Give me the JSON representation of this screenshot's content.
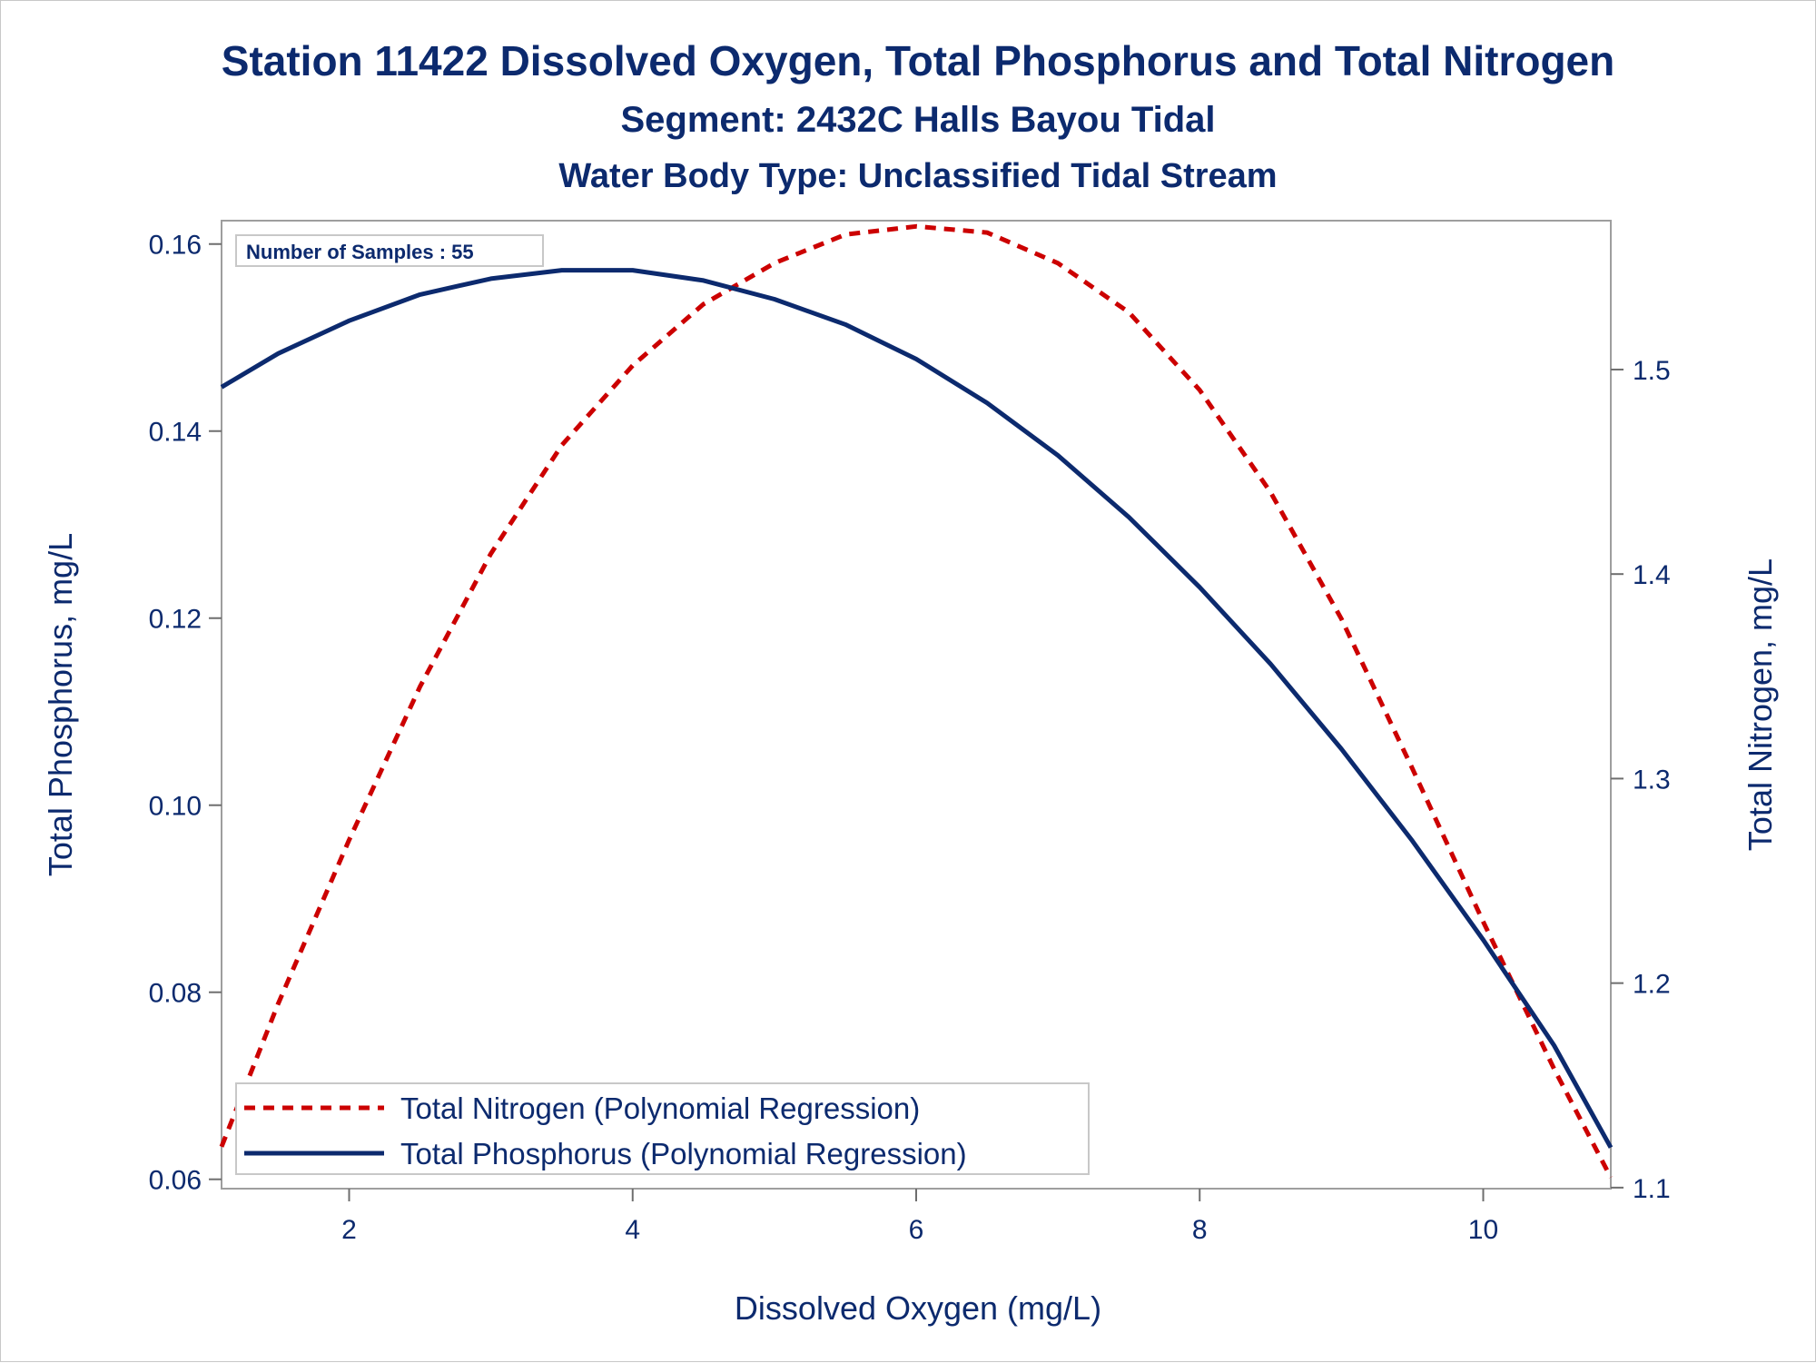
{
  "chart_data": {
    "type": "line",
    "title": "Station 11422  Dissolved Oxygen, Total Phosphorus and Total Nitrogen",
    "subtitle": "Segment: 2432C  Halls Bayou Tidal",
    "subtitle2": "Water Body Type: Unclassified Tidal Stream",
    "xlabel": "Dissolved Oxygen (mg/L)",
    "ylabel": "Total Phosphorus, mg/L",
    "y2label": "Total Nitrogen, mg/L",
    "xlim": [
      1.1,
      10.9
    ],
    "ylim": [
      0.059,
      0.1625
    ],
    "y2lim": [
      1.0995,
      1.5728
    ],
    "x_ticks": [
      "2",
      "4",
      "6",
      "8",
      "10"
    ],
    "y_ticks": [
      "0.06",
      "0.08",
      "0.10",
      "0.12",
      "0.14",
      "0.16"
    ],
    "y2_ticks": [
      "1.1",
      "1.2",
      "1.3",
      "1.4",
      "1.5"
    ],
    "annotation": "Number of Samples : 55",
    "legend_position": "bottom-left",
    "series": [
      {
        "name": "Total Nitrogen (Polynomial Regression)",
        "axis": "right",
        "color": "#cc0000",
        "style": "dashed",
        "x": [
          1.1,
          1.5,
          2.0,
          2.5,
          3.0,
          3.5,
          4.0,
          4.5,
          5.0,
          5.5,
          6.0,
          6.5,
          7.0,
          7.5,
          8.0,
          8.5,
          9.0,
          9.5,
          10.0,
          10.5,
          10.9
        ],
        "values": [
          1.12,
          1.19,
          1.27,
          1.345,
          1.41,
          1.463,
          1.502,
          1.532,
          1.552,
          1.566,
          1.57,
          1.567,
          1.552,
          1.528,
          1.49,
          1.44,
          1.378,
          1.305,
          1.23,
          1.158,
          1.105
        ]
      },
      {
        "name": "Total Phosphorus (Polynomial Regression)",
        "axis": "left",
        "color": "#0c2a6e",
        "style": "solid",
        "x": [
          1.1,
          1.5,
          2.0,
          2.5,
          3.0,
          3.5,
          4.0,
          4.5,
          5.0,
          5.5,
          6.0,
          6.5,
          7.0,
          7.5,
          8.0,
          8.5,
          9.0,
          9.5,
          10.0,
          10.5,
          10.9
        ],
        "values": [
          0.1447,
          0.1483,
          0.1518,
          0.1546,
          0.1563,
          0.1572,
          0.1572,
          0.1561,
          0.1541,
          0.1514,
          0.1477,
          0.143,
          0.1374,
          0.1308,
          0.1233,
          0.1151,
          0.106,
          0.0962,
          0.0856,
          0.0743,
          0.0634
        ]
      }
    ]
  }
}
